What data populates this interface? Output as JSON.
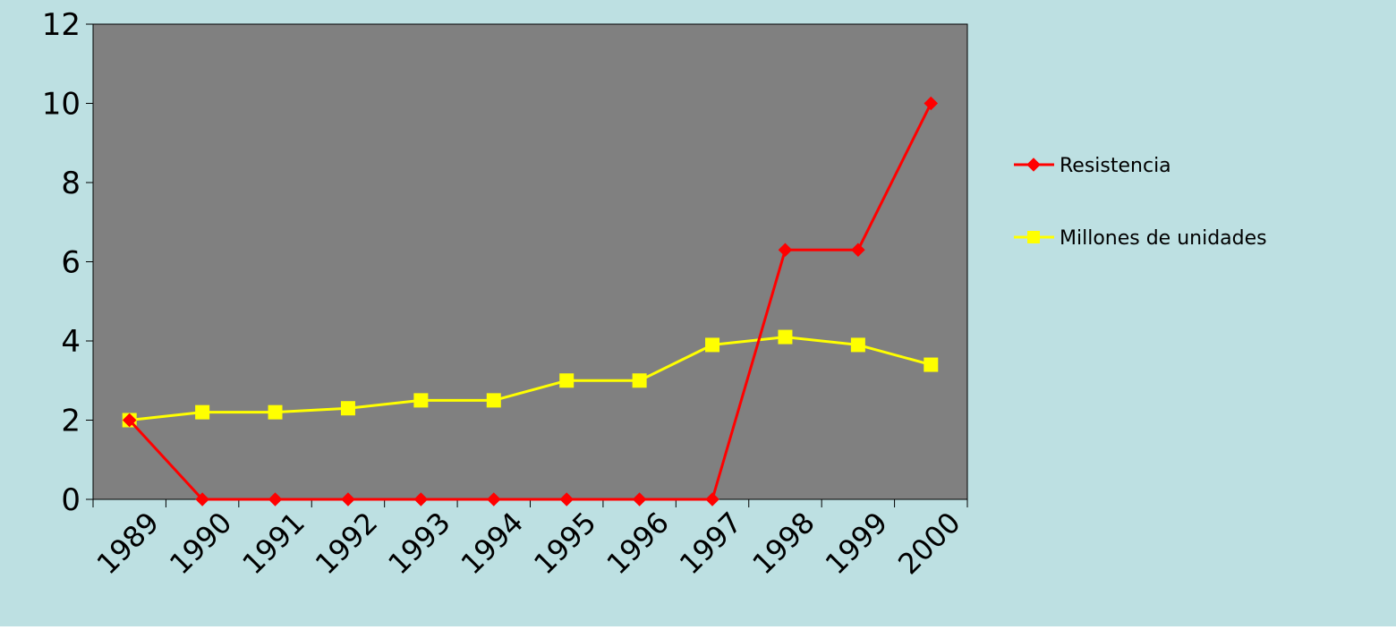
{
  "colors": {
    "background": "#bde0e2",
    "plot_area": "#808080",
    "resistencia": "#ff0000",
    "millones": "#ffff00"
  },
  "chart_data": {
    "type": "line",
    "title": "",
    "xlabel": "",
    "ylabel": "",
    "categories": [
      "1989",
      "1990",
      "1991",
      "1992",
      "1993",
      "1994",
      "1995",
      "1996",
      "1997",
      "1998",
      "1999",
      "2000"
    ],
    "ylim": [
      0,
      12
    ],
    "yticks": [
      "0",
      "2",
      "4",
      "6",
      "8",
      "10",
      "12"
    ],
    "grid": false,
    "legend": "right",
    "series": [
      {
        "name": "Resistencia",
        "marker": "diamond",
        "values": [
          2,
          0,
          0,
          0,
          0,
          0,
          0,
          0,
          0,
          6.3,
          6.3,
          10
        ]
      },
      {
        "name": "Millones de unidades",
        "marker": "square",
        "values": [
          2,
          2.2,
          2.2,
          2.3,
          2.5,
          2.5,
          3,
          3,
          3.9,
          4.1,
          3.9,
          3.4
        ]
      }
    ]
  }
}
